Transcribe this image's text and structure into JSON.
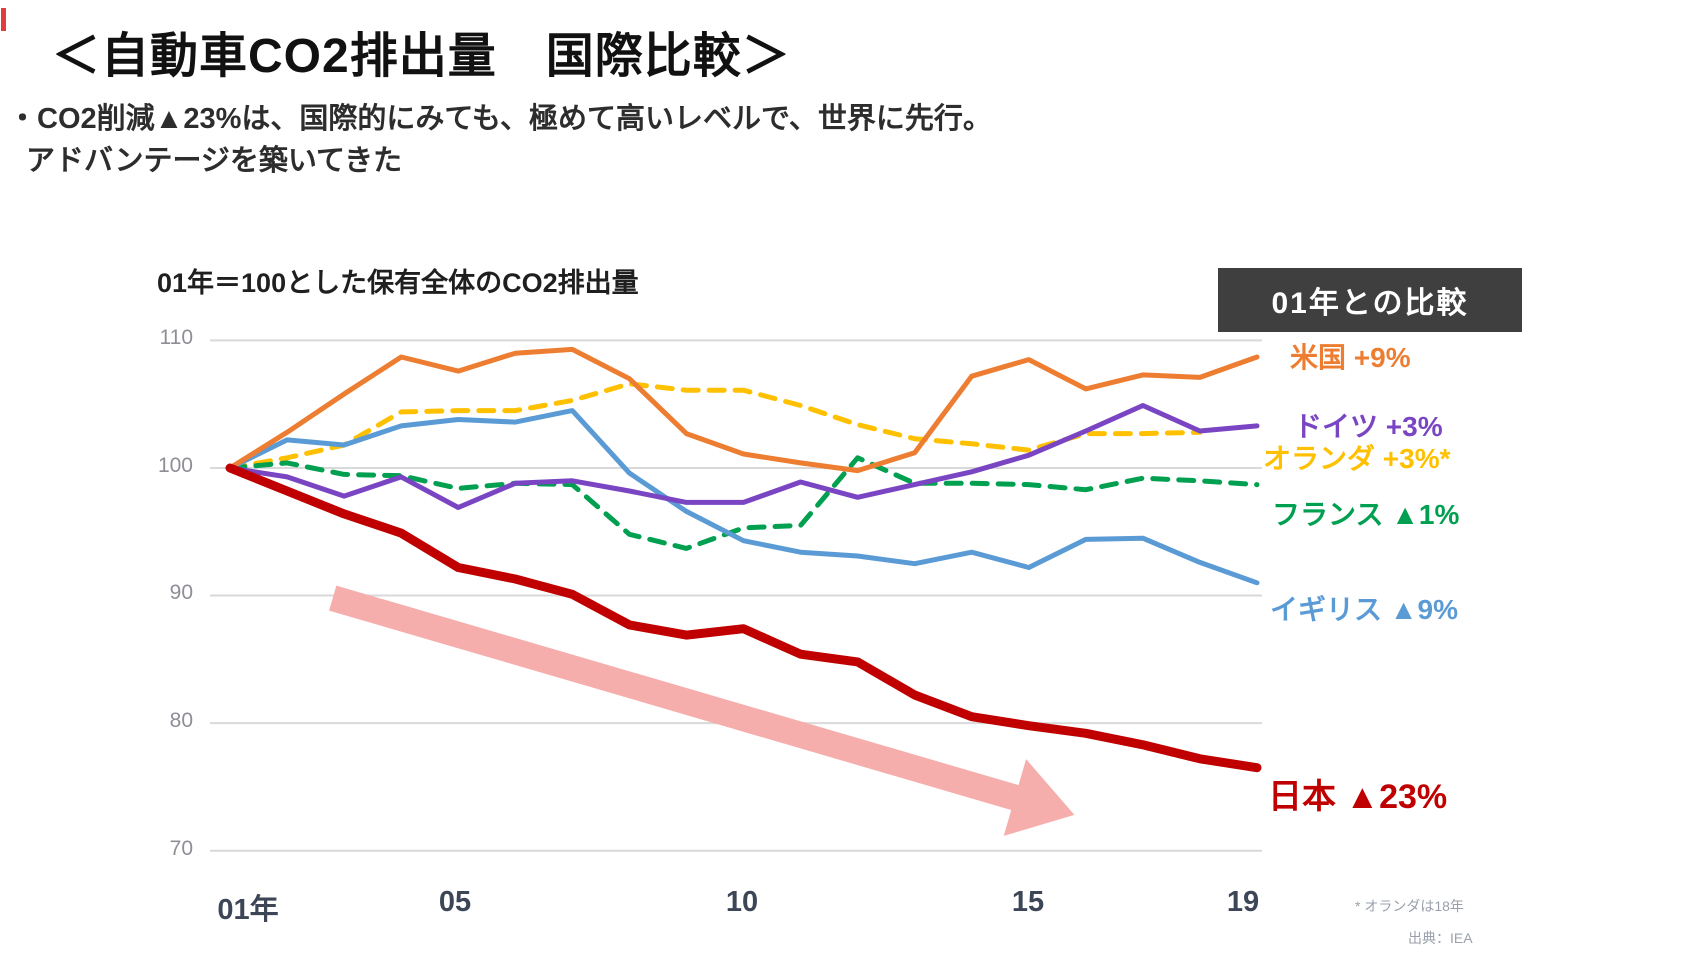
{
  "page": {
    "title": "＜自動車CO2排出量　国際比較＞",
    "subtitle_line1": "・CO2削減▲23%は、国際的にみても、極めて高いレベルで、世界に先行。",
    "subtitle_line2": "アドバンテージを築いてきた"
  },
  "legend": {
    "header": "01年との比較"
  },
  "footnotes": {
    "asterisk_note": "* オランダは18年",
    "source": "出典：IEA"
  },
  "chart_data": {
    "type": "line",
    "title": "01年＝100とした保有全体のCO2排出量",
    "xlabel": "",
    "ylabel": "",
    "ylim": [
      70,
      110
    ],
    "grid": "horizontal",
    "grid_color": "#d9d9d9",
    "years": [
      2001,
      2002,
      2003,
      2004,
      2005,
      2006,
      2007,
      2008,
      2009,
      2010,
      2011,
      2012,
      2013,
      2014,
      2015,
      2016,
      2017,
      2018,
      2019
    ],
    "x_tick_labels": [
      "01年",
      "05",
      "10",
      "15",
      "19"
    ],
    "x_tick_years": [
      2001,
      2005,
      2010,
      2015,
      2019
    ],
    "y_ticks": [
      110,
      100,
      90,
      80,
      70
    ],
    "series": [
      {
        "name": "オランダ",
        "legend_label": "オランダ +3%*",
        "color": "#ffc000",
        "style": "dashed",
        "width": 5,
        "values": [
          100,
          100.8,
          101.8,
          104.4,
          104.5,
          104.5,
          105.3,
          106.6,
          106.1,
          106.1,
          104.9,
          103.4,
          102.3,
          101.9,
          101.4,
          102.7,
          102.7,
          102.8,
          null
        ]
      },
      {
        "name": "フランス",
        "legend_label": "フランス ▲1%",
        "color": "#00a050",
        "style": "dashed",
        "width": 5,
        "values": [
          100,
          100.4,
          99.5,
          99.4,
          98.4,
          98.8,
          98.7,
          94.8,
          93.7,
          95.3,
          95.5,
          100.8,
          98.8,
          98.8,
          98.7,
          98.3,
          99.2,
          99.0,
          98.7
        ]
      },
      {
        "name": "イギリス",
        "legend_label": "イギリス ▲9%",
        "color": "#5b9bd5",
        "style": "solid",
        "width": 5,
        "values": [
          100,
          102.2,
          101.8,
          103.3,
          103.8,
          103.6,
          104.5,
          99.6,
          96.6,
          94.3,
          93.4,
          93.1,
          92.5,
          93.4,
          92.2,
          94.4,
          94.5,
          92.6,
          91.0
        ]
      },
      {
        "name": "ドイツ",
        "legend_label": "ドイツ +3%",
        "color": "#7a45c2",
        "style": "solid",
        "width": 5,
        "values": [
          100,
          99.3,
          97.8,
          99.3,
          96.9,
          98.8,
          99.0,
          98.2,
          97.3,
          97.3,
          98.9,
          97.7,
          98.7,
          99.7,
          101.0,
          102.9,
          104.9,
          102.9,
          103.3
        ]
      },
      {
        "name": "米国",
        "legend_label": "米国 +9%",
        "color": "#ed7d31",
        "style": "solid",
        "width": 5,
        "values": [
          100,
          102.8,
          105.8,
          108.7,
          107.6,
          109.0,
          109.3,
          107.0,
          102.7,
          101.1,
          100.4,
          99.8,
          101.2,
          107.2,
          108.5,
          106.2,
          107.3,
          107.1,
          108.7
        ]
      },
      {
        "name": "日本",
        "legend_label": "日本 ▲23%",
        "color": "#c00000",
        "style": "solid",
        "width": 9,
        "values": [
          100,
          98.2,
          96.4,
          94.9,
          92.2,
          91.3,
          90.1,
          87.7,
          86.9,
          87.4,
          85.4,
          84.8,
          82.2,
          80.5,
          79.8,
          79.2,
          78.3,
          77.2,
          76.5
        ]
      }
    ],
    "annotation_arrow": {
      "from": [
        2002.8,
        89.8
      ],
      "to": [
        2015.8,
        72.8
      ],
      "color": "#f6aeac"
    },
    "legend_position": "right",
    "legend_header": "01年との比較"
  }
}
